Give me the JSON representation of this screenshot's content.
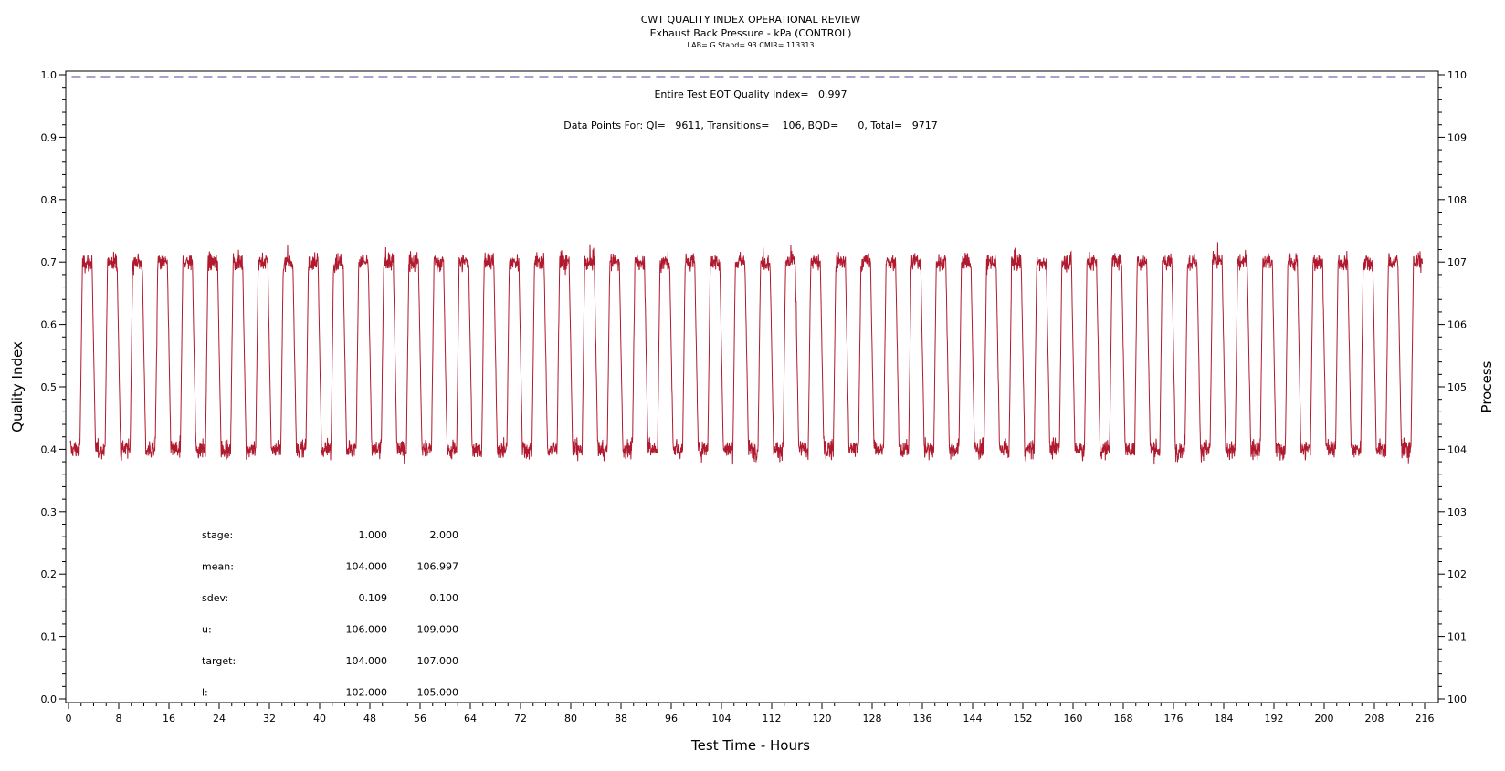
{
  "chart_data": {
    "type": "line",
    "title": "CWT QUALITY INDEX OPERATIONAL REVIEW",
    "subtitle": "Exhaust Back Pressure - kPa (CONTROL)",
    "subtitle2": "LAB= G Stand= 93 CMIR= 113313",
    "xlabel": "Test Time - Hours",
    "ylabel_left": "Quality Index",
    "ylabel_right": "Process",
    "xlim": [
      0,
      216
    ],
    "ylim_left": [
      0.0,
      1.0
    ],
    "ylim_right": [
      100,
      110
    ],
    "x_ticks": [
      "0",
      "8",
      "16",
      "24",
      "32",
      "40",
      "48",
      "56",
      "64",
      "72",
      "80",
      "88",
      "96",
      "104",
      "112",
      "120",
      "128",
      "136",
      "144",
      "152",
      "160",
      "168",
      "176",
      "184",
      "192",
      "200",
      "208",
      "216"
    ],
    "y_left_ticks": [
      "0.0",
      "0.1",
      "0.2",
      "0.3",
      "0.4",
      "0.5",
      "0.6",
      "0.7",
      "0.8",
      "0.9",
      "1.0"
    ],
    "y_right_ticks": [
      "100",
      "101",
      "102",
      "103",
      "104",
      "105",
      "106",
      "107",
      "108",
      "109",
      "110"
    ],
    "grid": false,
    "annotations": [
      "Entire Test EOT Quality Index=   0.997",
      "Data Points For: QI=   9611, Transitions=    106, BQD=      0, Total=   9717"
    ],
    "stats_table": {
      "rows": [
        {
          "label": "stage:",
          "v1": "1.000",
          "v2": "2.000"
        },
        {
          "label": "mean:",
          "v1": "104.000",
          "v2": "106.997"
        },
        {
          "label": "sdev:",
          "v1": "0.109",
          "v2": "0.100"
        },
        {
          "label": "u:",
          "v1": "106.000",
          "v2": "109.000"
        },
        {
          "label": "target:",
          "v1": "104.000",
          "v2": "107.000"
        },
        {
          "label": "l:",
          "v1": "102.000",
          "v2": "105.000"
        }
      ]
    },
    "series": [
      {
        "color": "#b0192e",
        "axis": "right",
        "pattern": "square wave alternating between stage 1 and stage 2",
        "stage1_level": 104.0,
        "stage2_level": 107.0,
        "cycle_hours": 4.0,
        "stage1_noise": 0.109,
        "stage2_noise": 0.1
      },
      {
        "color": "#4a4aa8",
        "axis": "left",
        "style": "dashed",
        "quality_index": 0.997
      }
    ]
  }
}
